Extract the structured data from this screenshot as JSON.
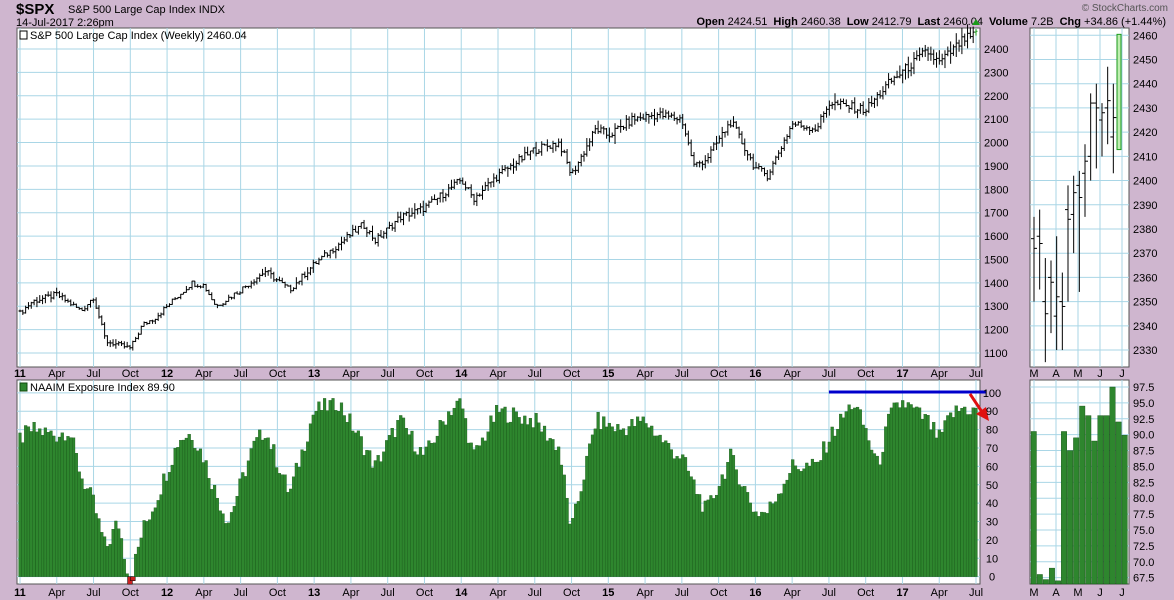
{
  "header": {
    "ticker": "$SPX",
    "index_name": "S&P 500 Large Cap Index",
    "exchange": "INDX",
    "datetime": "14-Jul-2017 2:26pm",
    "brand": "© StockCharts.com",
    "quote": [
      {
        "label": "Open",
        "value": "2424.51"
      },
      {
        "label": "High",
        "value": "2460.38"
      },
      {
        "label": "Low",
        "value": "2412.79"
      },
      {
        "label": "Last",
        "value": "2460.04"
      },
      {
        "label": "Volume",
        "value": "7.2B"
      },
      {
        "label": "Chg",
        "value": "+34.86 (+1.44%)"
      }
    ]
  },
  "colors": {
    "bar_fill": "#2e862e",
    "bar_edge": "#0f4a0f",
    "resistance": "#0000cc",
    "arrow": "#e01010",
    "grid": "#a9d6e6",
    "down_marker": "#cc2222"
  },
  "chart_data": [
    {
      "type": "line",
      "style": "ohlc",
      "title": "S&P 500 Large Cap Index (Weekly) 2460.04",
      "y_ticks": [
        1100,
        1200,
        1300,
        1400,
        1500,
        1600,
        1700,
        1800,
        1900,
        2000,
        2100,
        2200,
        2300,
        2400
      ],
      "ylim": [
        1040,
        2490
      ],
      "x_tick_labels": [
        "11",
        "Apr",
        "Jul",
        "Oct",
        "12",
        "Apr",
        "Jul",
        "Oct",
        "13",
        "Apr",
        "Jul",
        "Oct",
        "14",
        "Apr",
        "Jul",
        "Oct",
        "15",
        "Apr",
        "Jul",
        "Oct",
        "16",
        "Apr",
        "Jul",
        "Oct",
        "17",
        "Apr",
        "Jul"
      ],
      "bold_x_labels": [
        "11",
        "12",
        "13",
        "14",
        "15",
        "16",
        "17"
      ],
      "x_start": "2011-01",
      "x_end": "2017-07",
      "anchors": [
        {
          "date": "2011-01",
          "close": 1270
        },
        {
          "date": "2011-02",
          "close": 1320
        },
        {
          "date": "2011-04",
          "close": 1350
        },
        {
          "date": "2011-06",
          "close": 1280
        },
        {
          "date": "2011-07",
          "close": 1340
        },
        {
          "date": "2011-08",
          "close": 1150
        },
        {
          "date": "2011-10",
          "close": 1120
        },
        {
          "date": "2011-11",
          "close": 1220
        },
        {
          "date": "2011-12",
          "close": 1250
        },
        {
          "date": "2012-03",
          "close": 1400
        },
        {
          "date": "2012-04",
          "close": 1390
        },
        {
          "date": "2012-05",
          "close": 1300
        },
        {
          "date": "2012-07",
          "close": 1370
        },
        {
          "date": "2012-09",
          "close": 1450
        },
        {
          "date": "2012-11",
          "close": 1370
        },
        {
          "date": "2013-01",
          "close": 1480
        },
        {
          "date": "2013-05",
          "close": 1650
        },
        {
          "date": "2013-06",
          "close": 1580
        },
        {
          "date": "2013-08",
          "close": 1680
        },
        {
          "date": "2013-10",
          "close": 1720
        },
        {
          "date": "2014-01",
          "close": 1840
        },
        {
          "date": "2014-02",
          "close": 1760
        },
        {
          "date": "2014-04",
          "close": 1860
        },
        {
          "date": "2014-07",
          "close": 1970
        },
        {
          "date": "2014-09",
          "close": 2000
        },
        {
          "date": "2014-10",
          "close": 1860
        },
        {
          "date": "2014-12",
          "close": 2060
        },
        {
          "date": "2015-01",
          "close": 2030
        },
        {
          "date": "2015-03",
          "close": 2100
        },
        {
          "date": "2015-05",
          "close": 2120
        },
        {
          "date": "2015-07",
          "close": 2100
        },
        {
          "date": "2015-08",
          "close": 1900
        },
        {
          "date": "2015-09",
          "close": 1930
        },
        {
          "date": "2015-11",
          "close": 2090
        },
        {
          "date": "2016-01",
          "close": 1890
        },
        {
          "date": "2016-02",
          "close": 1860
        },
        {
          "date": "2016-04",
          "close": 2080
        },
        {
          "date": "2016-06",
          "close": 2060
        },
        {
          "date": "2016-07",
          "close": 2170
        },
        {
          "date": "2016-10",
          "close": 2140
        },
        {
          "date": "2016-11",
          "close": 2200
        },
        {
          "date": "2016-12",
          "close": 2260
        },
        {
          "date": "2017-03",
          "close": 2390
        },
        {
          "date": "2017-04",
          "close": 2340
        },
        {
          "date": "2017-06",
          "close": 2440
        },
        {
          "date": "2017-07",
          "close": 2460
        }
      ]
    },
    {
      "type": "line",
      "style": "ohlc",
      "title": "",
      "y_ticks": [
        2330,
        2340,
        2350,
        2360,
        2370,
        2380,
        2390,
        2400,
        2410,
        2420,
        2430,
        2440,
        2450,
        2460
      ],
      "ylim": [
        2323,
        2463
      ],
      "x_tick_labels": [
        "M",
        "A",
        "M",
        "J",
        "J"
      ],
      "bars": [
        {
          "o": 2376,
          "h": 2385,
          "l": 2350,
          "c": 2372
        },
        {
          "o": 2377,
          "h": 2388,
          "l": 2355,
          "c": 2374
        },
        {
          "o": 2350,
          "h": 2368,
          "l": 2325,
          "c": 2345
        },
        {
          "o": 2360,
          "h": 2367,
          "l": 2337,
          "c": 2358
        },
        {
          "o": 2344,
          "h": 2377,
          "l": 2330,
          "c": 2352
        },
        {
          "o": 2350,
          "h": 2362,
          "l": 2330,
          "c": 2348
        },
        {
          "o": 2388,
          "h": 2398,
          "l": 2350,
          "c": 2384
        },
        {
          "o": 2386,
          "h": 2402,
          "l": 2370,
          "c": 2395
        },
        {
          "o": 2398,
          "h": 2404,
          "l": 2354,
          "c": 2393
        },
        {
          "o": 2403,
          "h": 2415,
          "l": 2385,
          "c": 2408
        },
        {
          "o": 2410,
          "h": 2436,
          "l": 2400,
          "c": 2432
        },
        {
          "o": 2432,
          "h": 2440,
          "l": 2405,
          "c": 2430
        },
        {
          "o": 2425,
          "h": 2432,
          "l": 2410,
          "c": 2428
        },
        {
          "o": 2430,
          "h": 2447,
          "l": 2415,
          "c": 2433
        },
        {
          "o": 2418,
          "h": 2440,
          "l": 2403,
          "c": 2426
        },
        {
          "o": 2424.51,
          "h": 2460.38,
          "l": 2412.79,
          "c": 2460.04
        }
      ]
    },
    {
      "type": "bar",
      "title": "NAAIM Exposure Index 89.90",
      "y_ticks": [
        0,
        10,
        20,
        30,
        40,
        50,
        60,
        70,
        80,
        90,
        100
      ],
      "ylim": [
        -4,
        107
      ],
      "x_tick_labels": [
        "11",
        "Apr",
        "Jul",
        "Oct",
        "12",
        "Apr",
        "Jul",
        "Oct",
        "13",
        "Apr",
        "Jul",
        "Oct",
        "14",
        "Apr",
        "Jul",
        "Oct",
        "15",
        "Apr",
        "Jul",
        "Oct",
        "16",
        "Apr",
        "Jul",
        "Oct",
        "17",
        "Apr",
        "Jul"
      ],
      "bold_x_labels": [
        "11",
        "12",
        "13",
        "14",
        "15",
        "16",
        "17"
      ],
      "x_start": "2011-01",
      "x_end": "2017-07",
      "anchors": [
        {
          "date": "2011-01",
          "value": 75
        },
        {
          "date": "2011-02",
          "value": 80
        },
        {
          "date": "2011-04",
          "value": 77
        },
        {
          "date": "2011-05",
          "value": 80
        },
        {
          "date": "2011-06",
          "value": 55
        },
        {
          "date": "2011-07",
          "value": 40
        },
        {
          "date": "2011-08",
          "value": 15
        },
        {
          "date": "2011-09",
          "value": 30
        },
        {
          "date": "2011-10",
          "value": -3
        },
        {
          "date": "2011-11",
          "value": 25
        },
        {
          "date": "2011-12",
          "value": 40
        },
        {
          "date": "2012-02",
          "value": 75
        },
        {
          "date": "2012-03",
          "value": 78
        },
        {
          "date": "2012-04",
          "value": 65
        },
        {
          "date": "2012-05",
          "value": 45
        },
        {
          "date": "2012-06",
          "value": 30
        },
        {
          "date": "2012-08",
          "value": 70
        },
        {
          "date": "2012-09",
          "value": 80
        },
        {
          "date": "2012-11",
          "value": 45
        },
        {
          "date": "2013-01",
          "value": 90
        },
        {
          "date": "2013-03",
          "value": 95
        },
        {
          "date": "2013-06",
          "value": 60
        },
        {
          "date": "2013-08",
          "value": 85
        },
        {
          "date": "2013-10",
          "value": 65
        },
        {
          "date": "2013-12",
          "value": 90
        },
        {
          "date": "2014-01",
          "value": 95
        },
        {
          "date": "2014-02",
          "value": 65
        },
        {
          "date": "2014-04",
          "value": 90
        },
        {
          "date": "2014-07",
          "value": 85
        },
        {
          "date": "2014-09",
          "value": 70
        },
        {
          "date": "2014-10",
          "value": 25
        },
        {
          "date": "2014-12",
          "value": 85
        },
        {
          "date": "2015-02",
          "value": 80
        },
        {
          "date": "2015-04",
          "value": 85
        },
        {
          "date": "2015-06",
          "value": 70
        },
        {
          "date": "2015-07",
          "value": 65
        },
        {
          "date": "2015-09",
          "value": 35
        },
        {
          "date": "2015-11",
          "value": 65
        },
        {
          "date": "2016-01",
          "value": 35
        },
        {
          "date": "2016-02",
          "value": 35
        },
        {
          "date": "2016-04",
          "value": 60
        },
        {
          "date": "2016-06",
          "value": 60
        },
        {
          "date": "2016-07",
          "value": 75
        },
        {
          "date": "2016-08",
          "value": 85
        },
        {
          "date": "2016-09",
          "value": 95
        },
        {
          "date": "2016-10",
          "value": 80
        },
        {
          "date": "2016-11",
          "value": 60
        },
        {
          "date": "2016-12",
          "value": 88
        },
        {
          "date": "2017-01",
          "value": 95
        },
        {
          "date": "2017-02",
          "value": 90
        },
        {
          "date": "2017-03",
          "value": 85
        },
        {
          "date": "2017-04",
          "value": 75
        },
        {
          "date": "2017-05",
          "value": 88
        },
        {
          "date": "2017-06",
          "value": 92
        },
        {
          "date": "2017-07",
          "value": 89.9
        }
      ],
      "resistance_level": 100.5,
      "resistance_from": "2016-07"
    },
    {
      "type": "bar",
      "title": "",
      "y_ticks": [
        67.5,
        70.0,
        72.5,
        75.0,
        77.5,
        80.0,
        82.5,
        85.0,
        87.5,
        90.0,
        92.5,
        95.0,
        97.5
      ],
      "ylim": [
        66.5,
        98.6
      ],
      "x_tick_labels": [
        "M",
        "A",
        "M",
        "J",
        "J"
      ],
      "values": [
        90.5,
        68,
        67.2,
        69,
        67,
        90.5,
        87.5,
        89.5,
        94.5,
        93,
        89,
        93,
        93,
        97.5,
        92,
        89.9
      ]
    }
  ]
}
